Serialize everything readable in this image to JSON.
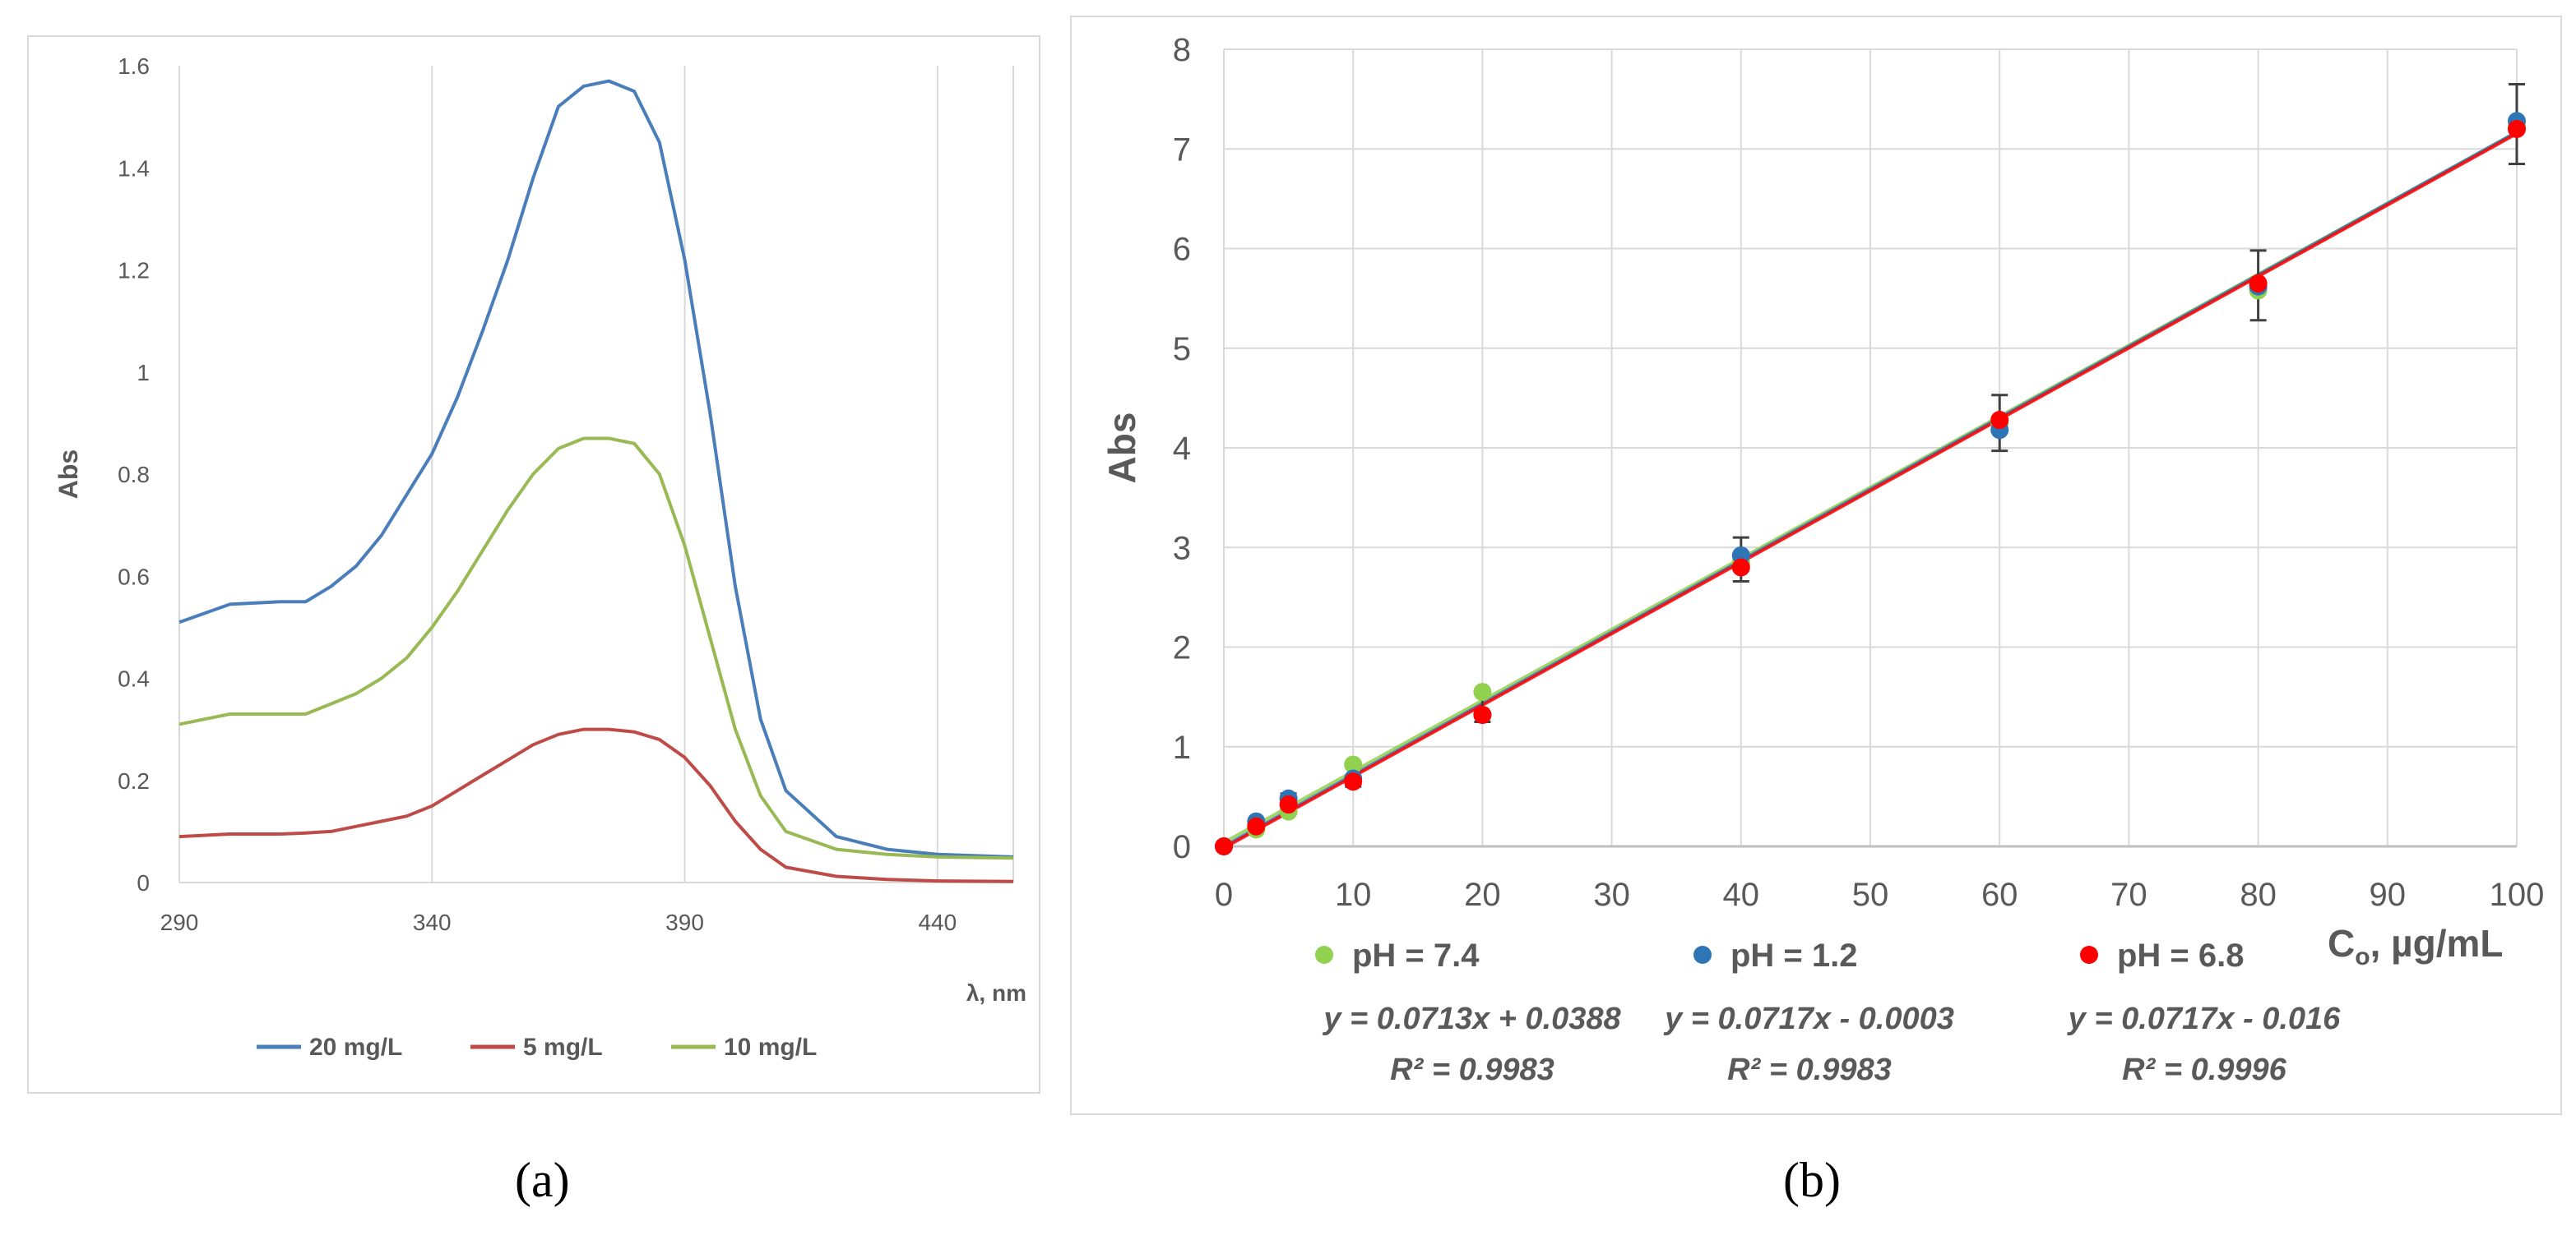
{
  "figure": {
    "label_a": "(a)",
    "label_b": "(b)"
  },
  "chart_data": [
    {
      "type": "line",
      "panel": "a",
      "title": "",
      "xlabel": "λ, nm",
      "ylabel": "Abs",
      "xlim": [
        290,
        455
      ],
      "ylim": [
        0,
        1.6
      ],
      "xticks": [
        290,
        340,
        390,
        440
      ],
      "xtick_labels": [
        "290",
        "340",
        "390",
        "440"
      ],
      "yticks": [
        0,
        0.2,
        0.4,
        0.6,
        0.8,
        1,
        1.2,
        1.4,
        1.6
      ],
      "ytick_labels": [
        "0",
        "0.2",
        "0.4",
        "0.6",
        "0.8",
        "1",
        "1.2",
        "1.4",
        "1.6"
      ],
      "grid": "vertical",
      "legend": "bottom",
      "series": [
        {
          "name": "20 mg/L",
          "color": "#4a7ebb",
          "x": [
            290,
            300,
            310,
            315,
            320,
            325,
            330,
            335,
            340,
            345,
            350,
            355,
            360,
            365,
            370,
            375,
            380,
            385,
            390,
            395,
            400,
            405,
            410,
            420,
            430,
            440,
            455
          ],
          "y": [
            0.51,
            0.545,
            0.55,
            0.55,
            0.58,
            0.62,
            0.68,
            0.76,
            0.84,
            0.95,
            1.08,
            1.22,
            1.38,
            1.52,
            1.56,
            1.57,
            1.55,
            1.45,
            1.22,
            0.92,
            0.58,
            0.32,
            0.18,
            0.09,
            0.065,
            0.055,
            0.05
          ]
        },
        {
          "name": "5 mg/L",
          "color": "#be4b48",
          "x": [
            290,
            300,
            310,
            315,
            320,
            325,
            330,
            335,
            340,
            345,
            350,
            355,
            360,
            365,
            370,
            375,
            380,
            385,
            390,
            395,
            400,
            405,
            410,
            420,
            430,
            440,
            455
          ],
          "y": [
            0.09,
            0.095,
            0.095,
            0.097,
            0.1,
            0.11,
            0.12,
            0.13,
            0.15,
            0.18,
            0.21,
            0.24,
            0.27,
            0.29,
            0.3,
            0.3,
            0.295,
            0.28,
            0.245,
            0.19,
            0.12,
            0.065,
            0.03,
            0.012,
            0.006,
            0.003,
            0.002
          ]
        },
        {
          "name": "10 mg/L",
          "color": "#98b954",
          "x": [
            290,
            300,
            310,
            315,
            320,
            325,
            330,
            335,
            340,
            345,
            350,
            355,
            360,
            365,
            370,
            375,
            380,
            385,
            390,
            395,
            400,
            405,
            410,
            420,
            430,
            440,
            455
          ],
          "y": [
            0.31,
            0.33,
            0.33,
            0.33,
            0.35,
            0.37,
            0.4,
            0.44,
            0.5,
            0.57,
            0.65,
            0.73,
            0.8,
            0.85,
            0.87,
            0.87,
            0.86,
            0.8,
            0.66,
            0.48,
            0.3,
            0.17,
            0.1,
            0.065,
            0.055,
            0.05,
            0.048
          ]
        }
      ]
    },
    {
      "type": "scatter",
      "panel": "b",
      "title": "",
      "xlabel": "C",
      "xlabel_sub": "o",
      "xlabel_rest": ", µg/mL",
      "ylabel": "Abs",
      "xlim": [
        0,
        100
      ],
      "ylim": [
        0,
        8
      ],
      "xticks": [
        0,
        10,
        20,
        30,
        40,
        50,
        60,
        70,
        80,
        90,
        100
      ],
      "xtick_labels": [
        "0",
        "10",
        "20",
        "30",
        "40",
        "50",
        "60",
        "70",
        "80",
        "90",
        "100"
      ],
      "yticks": [
        0,
        1,
        2,
        3,
        4,
        5,
        6,
        7,
        8
      ],
      "ytick_labels": [
        "0",
        "1",
        "2",
        "3",
        "4",
        "5",
        "6",
        "7",
        "8"
      ],
      "grid": true,
      "legend": "bottom",
      "series": [
        {
          "name": "pH = 7.4",
          "color": "#92d050",
          "x": [
            0,
            2.5,
            5,
            10,
            20,
            40,
            60,
            80,
            100
          ],
          "y": [
            0,
            0.17,
            0.35,
            0.82,
            1.55,
            2.85,
            4.25,
            5.58,
            7.22
          ],
          "equation": "y = 0.0713x + 0.0388",
          "r2": "R² = 0.9983",
          "trend": {
            "slope": 0.0713,
            "intercept": 0.0388
          }
        },
        {
          "name": "pH = 1.2",
          "color": "#2e75b6",
          "x": [
            0,
            2.5,
            5,
            10,
            20,
            40,
            60,
            80,
            100
          ],
          "y": [
            0,
            0.25,
            0.48,
            0.68,
            1.32,
            2.92,
            4.18,
            5.62,
            7.28
          ],
          "equation": "y = 0.0717x - 0.0003",
          "r2": "R² = 0.9983",
          "trend": {
            "slope": 0.0717,
            "intercept": -0.0003
          }
        },
        {
          "name": "pH = 6.8",
          "color": "#ff0000",
          "x": [
            0,
            2.5,
            5,
            10,
            20,
            40,
            60,
            80,
            100
          ],
          "y": [
            0,
            0.2,
            0.42,
            0.65,
            1.32,
            2.8,
            4.28,
            5.65,
            7.2
          ],
          "equation": "y = 0.0717x - 0.016",
          "r2": "R² = 0.9996",
          "trend": {
            "slope": 0.0717,
            "intercept": -0.016
          }
        }
      ],
      "error_bars": {
        "color": "#404040",
        "x": [
          0,
          2.5,
          5,
          10,
          20,
          40,
          60,
          80,
          100
        ],
        "y": [
          0,
          0.22,
          0.45,
          0.72,
          1.4,
          2.88,
          4.25,
          5.63,
          7.25
        ],
        "err": [
          0.02,
          0.05,
          0.08,
          0.12,
          0.15,
          0.22,
          0.28,
          0.35,
          0.4
        ]
      }
    }
  ]
}
